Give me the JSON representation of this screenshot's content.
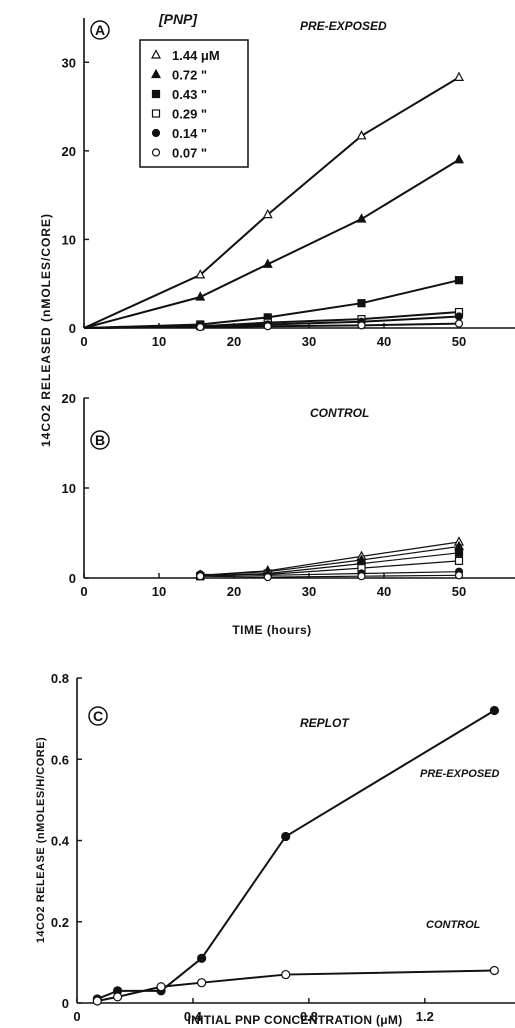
{
  "chart_data": [
    {
      "type": "line",
      "panel": "A",
      "title": "PRE-EXPOSED",
      "xlabel": "",
      "ylabel": "14CO2 RELEASED (nMOLES/CORE)",
      "xlim": [
        0,
        58
      ],
      "ylim": [
        0,
        35
      ],
      "xticks": [
        0,
        10,
        20,
        30,
        40,
        50
      ],
      "yticks": [
        0,
        10,
        20,
        30
      ],
      "legend": {
        "title": "[PNP]",
        "position": "top-left",
        "entries": [
          "1.44 μM",
          "0.72  \"",
          "0.43  \"",
          "0.29  \"",
          "0.14  \"",
          "0.07  \""
        ]
      },
      "x": [
        0,
        15.5,
        24.5,
        37,
        50
      ],
      "series": [
        {
          "name": "1.44 μM",
          "marker": "open-triangle",
          "values": [
            0,
            6.0,
            12.8,
            21.7,
            28.3
          ]
        },
        {
          "name": "0.72",
          "marker": "filled-triangle",
          "values": [
            0,
            3.5,
            7.2,
            12.3,
            19.0
          ]
        },
        {
          "name": "0.43",
          "marker": "filled-square",
          "values": [
            0,
            0.4,
            1.2,
            2.8,
            5.4
          ]
        },
        {
          "name": "0.29",
          "marker": "open-square",
          "values": [
            0,
            0.2,
            0.6,
            1.0,
            1.8
          ]
        },
        {
          "name": "0.14",
          "marker": "filled-circle",
          "values": [
            0,
            0.2,
            0.4,
            0.7,
            1.3
          ]
        },
        {
          "name": "0.07",
          "marker": "open-circle",
          "values": [
            0,
            0.1,
            0.2,
            0.3,
            0.5
          ]
        }
      ]
    },
    {
      "type": "line",
      "panel": "B",
      "title": "CONTROL",
      "xlabel": "TIME (hours)",
      "ylabel": "",
      "xlim": [
        0,
        58
      ],
      "ylim": [
        0,
        20
      ],
      "xticks": [
        0,
        10,
        20,
        30,
        40,
        50
      ],
      "yticks": [
        0,
        10,
        20
      ],
      "x": [
        15.5,
        24.5,
        37,
        50
      ],
      "series": [
        {
          "name": "1.44 μM",
          "marker": "open-triangle",
          "values": [
            0.3,
            0.8,
            2.4,
            4.0
          ]
        },
        {
          "name": "0.72",
          "marker": "filled-triangle",
          "values": [
            0.3,
            0.7,
            2.0,
            3.5
          ]
        },
        {
          "name": "0.43",
          "marker": "filled-square",
          "values": [
            0.2,
            0.5,
            1.6,
            2.8
          ]
        },
        {
          "name": "0.29",
          "marker": "open-square",
          "values": [
            0.2,
            0.4,
            1.1,
            1.9
          ]
        },
        {
          "name": "0.14",
          "marker": "filled-circle",
          "values": [
            0.4,
            0.3,
            0.5,
            0.7
          ]
        },
        {
          "name": "0.07",
          "marker": "open-circle",
          "values": [
            0.2,
            0.1,
            0.2,
            0.3
          ]
        }
      ]
    },
    {
      "type": "line",
      "panel": "C",
      "title": "REPLOT",
      "xlabel": "INITIAL PNP CONCENTRATION (μM)",
      "ylabel": "14CO2 RELEASE (nMOLES/H/CORE)",
      "xlim": [
        0,
        1.48
      ],
      "ylim": [
        0,
        0.8
      ],
      "xticks": [
        0,
        0.4,
        0.8,
        1.2
      ],
      "xtick_labels": [
        "0",
        "0.4",
        "0.8",
        "1.2"
      ],
      "yticks": [
        0,
        0.2,
        0.4,
        0.6,
        0.8
      ],
      "ytick_labels": [
        "0",
        "0.2",
        "0.4",
        "0.6",
        "0.8"
      ],
      "series": [
        {
          "name": "PRE-EXPOSED",
          "marker": "filled-circle",
          "x": [
            0.07,
            0.14,
            0.29,
            0.43,
            0.72,
            1.44
          ],
          "values": [
            0.01,
            0.03,
            0.03,
            0.11,
            0.41,
            0.72
          ]
        },
        {
          "name": "CONTROL",
          "marker": "open-circle",
          "x": [
            0.07,
            0.14,
            0.29,
            0.43,
            0.72,
            1.44
          ],
          "values": [
            0.005,
            0.015,
            0.04,
            0.05,
            0.07,
            0.08
          ]
        }
      ]
    }
  ]
}
